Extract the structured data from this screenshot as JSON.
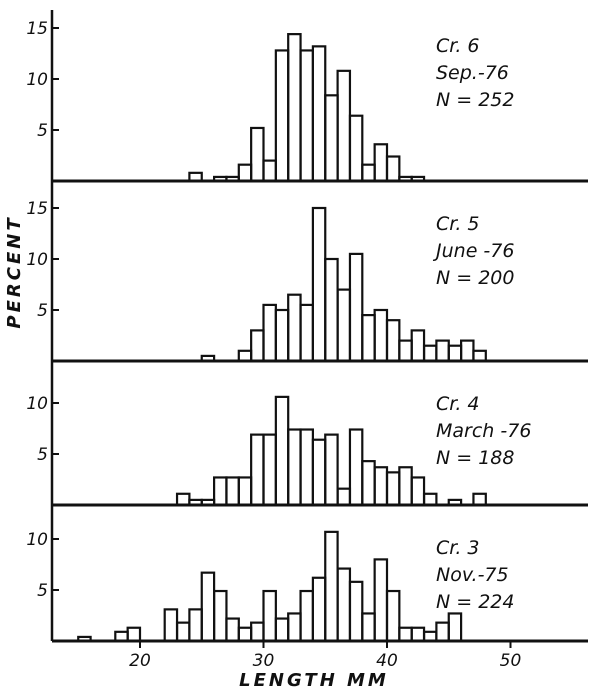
{
  "chart_data": {
    "type": "bar",
    "xlabel": "LENGTH  MM",
    "ylabel": "PERCENT",
    "xlim": [
      12,
      55
    ],
    "x_ticks": [
      "20",
      "30",
      "40",
      "50"
    ],
    "bin_width": 1,
    "panels": [
      {
        "lines": [
          "Cr. 6",
          "Sep.-76",
          "N = 252"
        ],
        "ylim": [
          0,
          16
        ],
        "y_ticks": [
          "5",
          "10",
          "15"
        ],
        "bin_starts": [
          24,
          25,
          26,
          27,
          28,
          29,
          30,
          31,
          32,
          33,
          34,
          35,
          36,
          37,
          38,
          39,
          40,
          41,
          42,
          43
        ],
        "values": [
          0.8,
          0,
          0.4,
          0.4,
          1.6,
          5.2,
          2.0,
          12.8,
          14.4,
          12.8,
          13.2,
          8.4,
          10.8,
          6.4,
          1.6,
          3.6,
          2.4,
          0.4,
          0.4,
          0
        ]
      },
      {
        "lines": [
          "Cr. 5",
          "June -76",
          "N = 200"
        ],
        "ylim": [
          0,
          16
        ],
        "y_ticks": [
          "5",
          "10",
          "15"
        ],
        "bin_starts": [
          25,
          26,
          27,
          28,
          29,
          30,
          31,
          32,
          33,
          34,
          35,
          36,
          37,
          38,
          39,
          40,
          41,
          42,
          43,
          44,
          45,
          46,
          47
        ],
        "values": [
          0.5,
          0,
          0,
          1.0,
          3.0,
          5.5,
          5.0,
          6.5,
          5.5,
          15.0,
          10.0,
          7.0,
          10.5,
          4.5,
          5.0,
          4.0,
          2.0,
          3.0,
          1.5,
          2.0,
          1.5,
          2.0,
          1.0
        ]
      },
      {
        "lines": [
          "Cr. 4",
          "March -76",
          "N = 188"
        ],
        "ylim": [
          0,
          13
        ],
        "y_ticks": [
          "5",
          "10"
        ],
        "bin_starts": [
          23,
          24,
          25,
          26,
          27,
          28,
          29,
          30,
          31,
          32,
          33,
          34,
          35,
          36,
          37,
          38,
          39,
          40,
          41,
          42,
          43,
          44,
          45,
          46,
          47
        ],
        "values": [
          1.1,
          0.5,
          0.5,
          2.7,
          2.7,
          2.7,
          6.9,
          6.9,
          10.6,
          7.4,
          7.4,
          6.4,
          6.9,
          1.6,
          7.4,
          4.3,
          3.7,
          3.2,
          3.7,
          2.7,
          1.1,
          0,
          0.5,
          0,
          1.1
        ]
      },
      {
        "lines": [
          "Cr. 3",
          "Nov.-75",
          "N = 224"
        ],
        "ylim": [
          0,
          13
        ],
        "y_ticks": [
          "5",
          "10"
        ],
        "bin_starts": [
          15,
          16,
          17,
          18,
          19,
          20,
          21,
          22,
          23,
          24,
          25,
          26,
          27,
          28,
          29,
          30,
          31,
          32,
          33,
          34,
          35,
          36,
          37,
          38,
          39,
          40,
          41,
          42,
          43,
          44,
          45
        ],
        "values": [
          0.4,
          0,
          0,
          0.9,
          1.3,
          0,
          0,
          3.1,
          1.8,
          3.1,
          6.7,
          4.9,
          2.2,
          1.3,
          1.8,
          4.9,
          2.2,
          2.7,
          4.9,
          6.2,
          10.7,
          7.1,
          5.8,
          2.7,
          8.0,
          4.9,
          1.3,
          1.3,
          0.9,
          1.8,
          2.7
        ]
      }
    ]
  }
}
